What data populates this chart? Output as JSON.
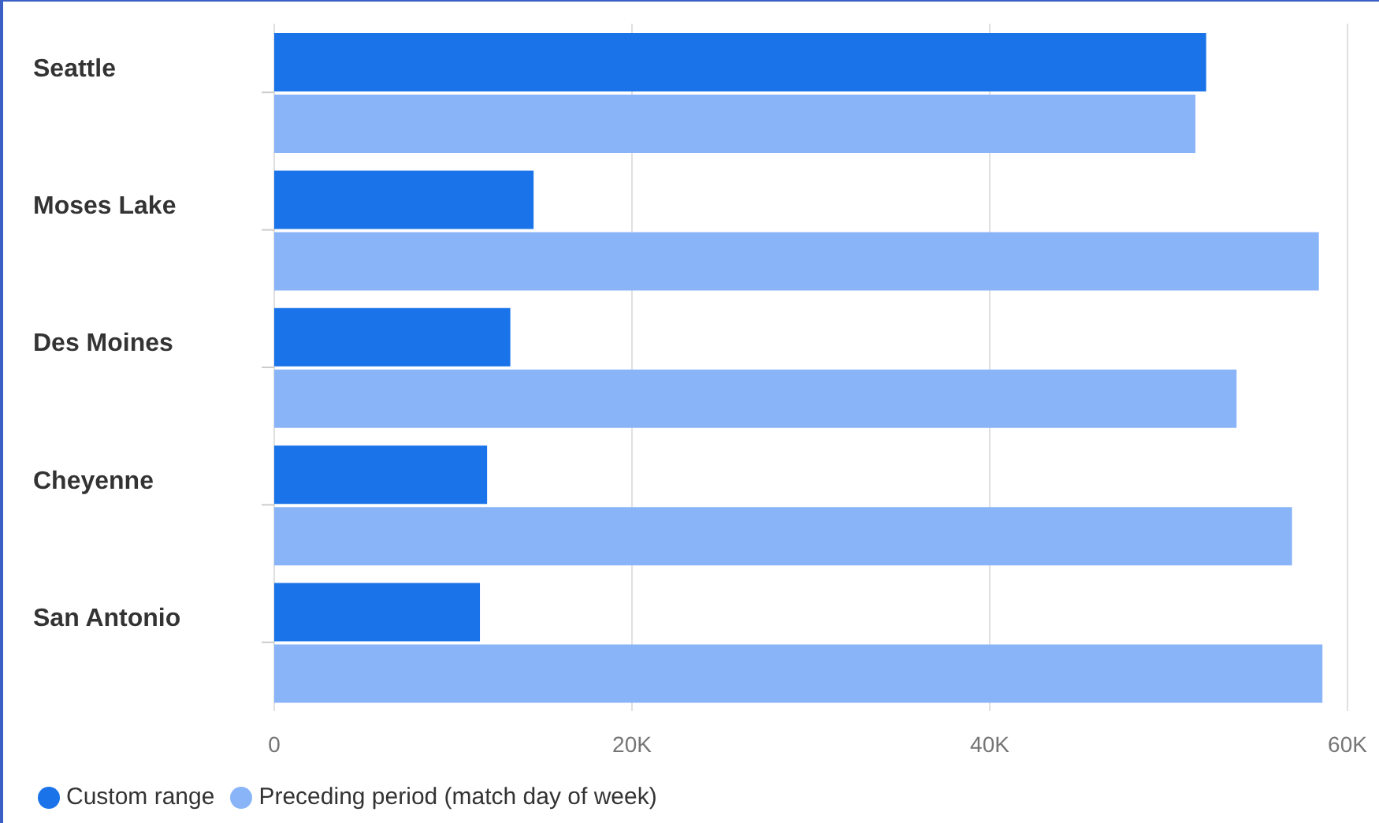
{
  "chart_data": {
    "type": "bar",
    "orientation": "horizontal",
    "categories": [
      "Seattle",
      "Moses Lake",
      "Des Moines",
      "Cheyenne",
      "San Antonio"
    ],
    "series": [
      {
        "name": "Custom range",
        "color": "#1a73e8",
        "values": [
          52100,
          14500,
          13200,
          11900,
          11500
        ]
      },
      {
        "name": "Preceding period (match day of week)",
        "color": "#8ab4f8",
        "values": [
          51500,
          58400,
          53800,
          56900,
          58600
        ]
      }
    ],
    "xlim": [
      0,
      60000
    ],
    "xticks": [
      0,
      {
        "value": 20000,
        "label": "20K"
      },
      {
        "value": 40000,
        "label": "40K"
      },
      {
        "value": 60000,
        "label": "60K"
      }
    ],
    "grid": "x",
    "legend": "bottom left"
  }
}
